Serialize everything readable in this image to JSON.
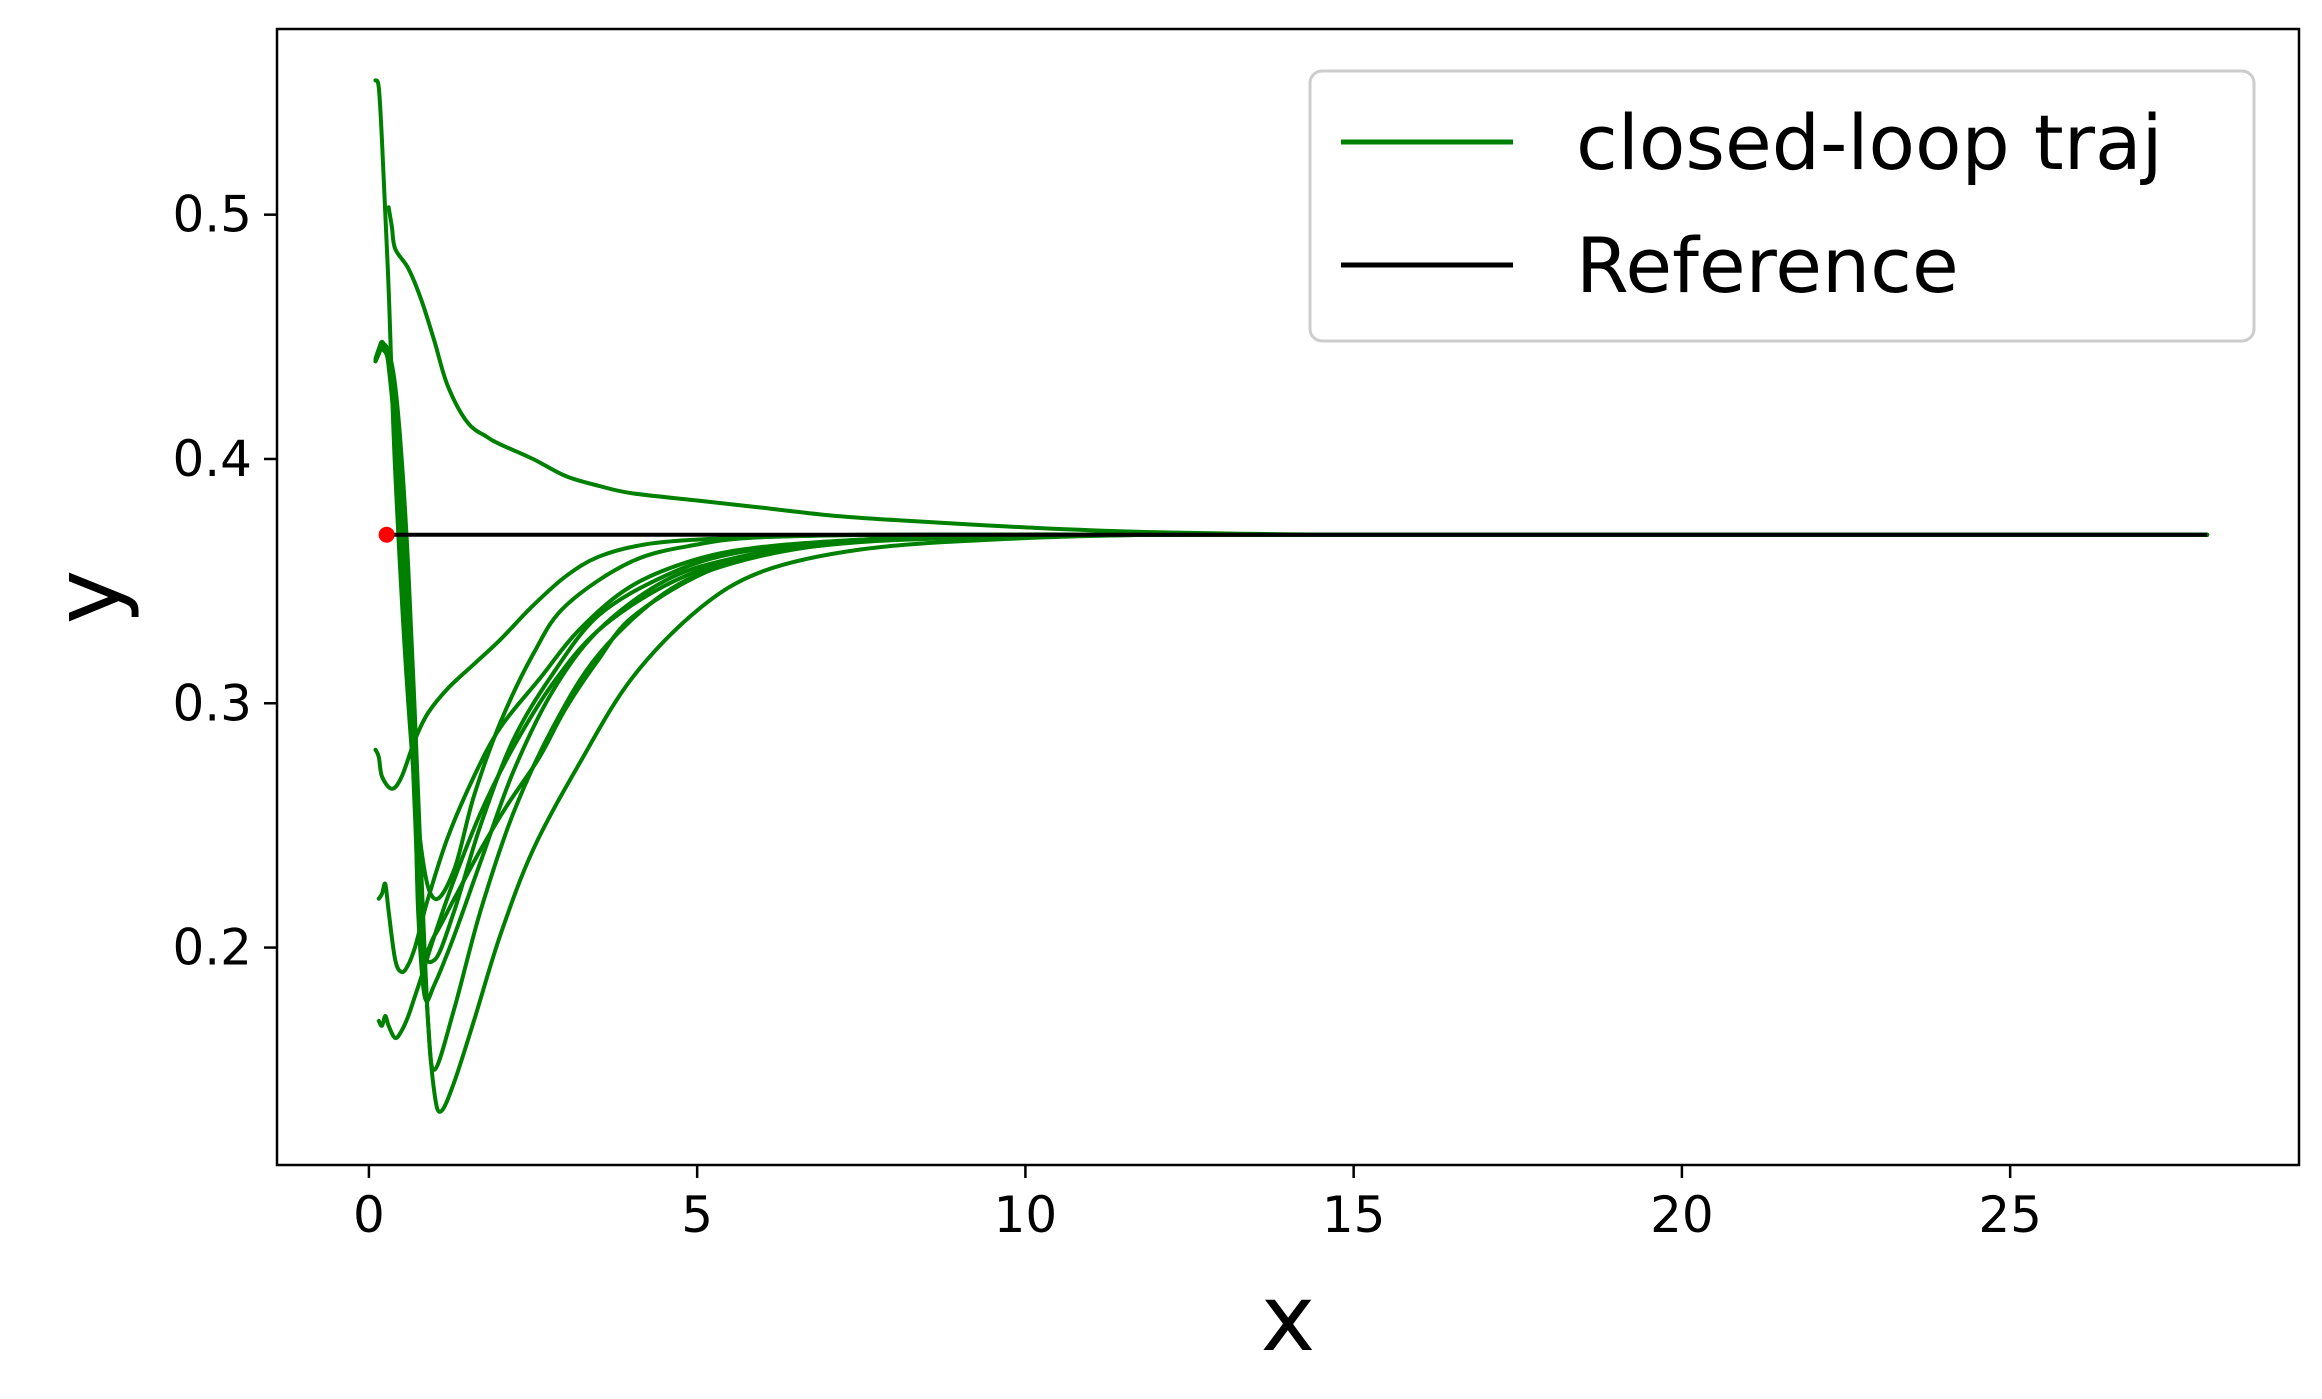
{
  "chart_data": {
    "type": "line",
    "title": "",
    "xlabel": "x",
    "ylabel": "y",
    "xlim": [
      -1.4,
      29.4
    ],
    "ylim": [
      0.111,
      0.576
    ],
    "xticks": [
      0,
      5,
      10,
      15,
      20,
      25
    ],
    "xtick_labels": [
      "0",
      "5",
      "10",
      "15",
      "20",
      "25"
    ],
    "yticks": [
      0.2,
      0.3,
      0.4,
      0.5
    ],
    "ytick_labels": [
      "0.2",
      "0.3",
      "0.4",
      "0.5"
    ],
    "grid": false,
    "legend": {
      "placement": "top-right",
      "entries": [
        {
          "label": "closed-loop traj",
          "color": "#008000"
        },
        {
          "label": "Reference",
          "color": "#000000"
        }
      ]
    },
    "reference": {
      "color": "#000000",
      "x": [
        0.27,
        28.0
      ],
      "y": [
        0.369,
        0.369
      ]
    },
    "target_point": {
      "color": "#ff0000",
      "x": 0.27,
      "y": 0.369
    },
    "traj_color": "#008000",
    "series": [
      {
        "x": [
          0.1,
          0.15,
          0.2,
          0.3,
          0.4,
          0.6,
          0.8,
          1.0,
          1.3,
          1.6,
          2.0,
          2.5,
          3.0,
          4.0,
          5.0,
          6.0,
          8.0,
          10.0,
          14.0,
          20.0,
          28.0
        ],
        "y": [
          0.555,
          0.552,
          0.53,
          0.47,
          0.395,
          0.3,
          0.24,
          0.22,
          0.232,
          0.262,
          0.292,
          0.32,
          0.34,
          0.358,
          0.365,
          0.368,
          0.369,
          0.369,
          0.369,
          0.369,
          0.369
        ]
      },
      {
        "x": [
          0.3,
          0.35,
          0.4,
          0.6,
          0.8,
          1.0,
          1.2,
          1.5,
          1.8,
          2.0,
          2.5,
          3.0,
          3.5,
          4.0,
          5.0,
          6.0,
          7.0,
          8.0,
          10.0,
          12.0,
          15.0,
          20.0,
          28.0
        ],
        "y": [
          0.503,
          0.495,
          0.486,
          0.478,
          0.465,
          0.448,
          0.43,
          0.415,
          0.409,
          0.406,
          0.4,
          0.393,
          0.389,
          0.386,
          0.383,
          0.38,
          0.377,
          0.375,
          0.372,
          0.37,
          0.369,
          0.369,
          0.369
        ]
      },
      {
        "x": [
          0.1,
          0.15,
          0.2,
          0.25,
          0.3,
          0.4,
          0.5,
          0.6,
          0.7,
          0.75,
          0.85,
          1.0,
          1.3,
          1.7,
          2.2,
          2.8,
          3.5,
          4.5,
          5.5,
          7.0,
          9.0,
          12.0,
          16.0,
          20.0,
          28.0
        ],
        "y": [
          0.441,
          0.445,
          0.448,
          0.445,
          0.438,
          0.41,
          0.37,
          0.32,
          0.265,
          0.215,
          0.18,
          0.185,
          0.205,
          0.235,
          0.272,
          0.305,
          0.33,
          0.35,
          0.359,
          0.366,
          0.368,
          0.369,
          0.369,
          0.369,
          0.369
        ]
      },
      {
        "x": [
          0.1,
          0.15,
          0.2,
          0.3,
          0.4,
          0.5,
          0.6,
          0.7,
          0.8,
          1.0,
          1.3,
          1.7,
          2.2,
          2.8,
          3.5,
          4.5,
          5.5,
          7.0,
          9.0,
          12.0,
          16.0,
          28.0
        ],
        "y": [
          0.44,
          0.443,
          0.445,
          0.44,
          0.42,
          0.385,
          0.33,
          0.27,
          0.205,
          0.195,
          0.215,
          0.25,
          0.285,
          0.312,
          0.336,
          0.352,
          0.361,
          0.366,
          0.368,
          0.369,
          0.369,
          0.369
        ]
      },
      {
        "x": [
          0.1,
          0.15,
          0.2,
          0.3,
          0.4,
          0.5,
          0.6,
          0.7,
          0.8,
          0.9,
          1.0,
          1.3,
          1.7,
          2.2,
          2.8,
          3.5,
          4.5,
          5.5,
          7.0,
          9.0,
          12.0,
          16.0,
          28.0
        ],
        "y": [
          0.44,
          0.444,
          0.446,
          0.442,
          0.425,
          0.395,
          0.35,
          0.29,
          0.225,
          0.17,
          0.15,
          0.175,
          0.215,
          0.255,
          0.29,
          0.32,
          0.345,
          0.357,
          0.365,
          0.368,
          0.369,
          0.369,
          0.369
        ]
      },
      {
        "x": [
          0.1,
          0.15,
          0.2,
          0.3,
          0.4,
          0.5,
          0.6,
          0.7,
          0.8,
          0.9,
          1.0,
          1.1,
          1.3,
          1.6,
          2.0,
          2.5,
          3.2,
          4.0,
          5.0,
          6.0,
          7.5,
          9.5,
          12.0,
          16.0,
          28.0
        ],
        "y": [
          0.44,
          0.443,
          0.447,
          0.444,
          0.43,
          0.4,
          0.355,
          0.295,
          0.23,
          0.17,
          0.14,
          0.133,
          0.145,
          0.17,
          0.205,
          0.24,
          0.275,
          0.31,
          0.338,
          0.354,
          0.363,
          0.367,
          0.369,
          0.369,
          0.369
        ]
      },
      {
        "x": [
          0.1,
          0.15,
          0.2,
          0.3,
          0.4,
          0.5,
          0.6,
          0.7,
          0.8,
          1.0,
          1.3,
          1.7,
          2.1,
          2.6,
          3.0,
          3.5,
          4.0,
          5.0,
          6.0,
          7.5,
          9.5,
          12.0,
          16.0,
          28.0
        ],
        "y": [
          0.44,
          0.444,
          0.446,
          0.44,
          0.42,
          0.38,
          0.32,
          0.255,
          0.2,
          0.205,
          0.22,
          0.24,
          0.258,
          0.278,
          0.298,
          0.318,
          0.335,
          0.352,
          0.361,
          0.366,
          0.368,
          0.369,
          0.369,
          0.369
        ]
      },
      {
        "x": [
          0.1,
          0.15,
          0.2,
          0.35,
          0.5,
          0.7,
          0.9,
          1.2,
          1.6,
          2.0,
          2.5,
          3.0,
          3.5,
          4.2,
          5.0,
          6.0,
          7.5,
          9.5,
          12.0,
          16.0,
          28.0
        ],
        "y": [
          0.281,
          0.278,
          0.27,
          0.265,
          0.27,
          0.285,
          0.296,
          0.306,
          0.316,
          0.326,
          0.34,
          0.352,
          0.36,
          0.365,
          0.367,
          0.368,
          0.369,
          0.369,
          0.369,
          0.369,
          0.369
        ]
      },
      {
        "x": [
          0.15,
          0.2,
          0.25,
          0.3,
          0.4,
          0.5,
          0.6,
          0.7,
          0.8,
          0.9,
          1.2,
          1.6,
          2.0,
          2.6,
          3.2,
          4.0,
          5.0,
          6.0,
          7.5,
          9.5,
          12.0,
          16.0,
          28.0
        ],
        "y": [
          0.22,
          0.222,
          0.226,
          0.215,
          0.195,
          0.19,
          0.193,
          0.2,
          0.21,
          0.22,
          0.245,
          0.27,
          0.29,
          0.31,
          0.33,
          0.348,
          0.359,
          0.364,
          0.367,
          0.369,
          0.369,
          0.369,
          0.369
        ]
      },
      {
        "x": [
          0.15,
          0.2,
          0.25,
          0.3,
          0.4,
          0.5,
          0.6,
          0.7,
          0.8,
          1.0,
          1.3,
          1.7,
          2.2,
          2.8,
          3.5,
          4.5,
          5.5,
          7.0,
          9.0,
          12.0,
          16.0,
          28.0
        ],
        "y": [
          0.17,
          0.168,
          0.172,
          0.168,
          0.163,
          0.166,
          0.172,
          0.18,
          0.188,
          0.205,
          0.228,
          0.255,
          0.282,
          0.308,
          0.33,
          0.348,
          0.358,
          0.365,
          0.368,
          0.369,
          0.369,
          0.369
        ]
      }
    ]
  }
}
